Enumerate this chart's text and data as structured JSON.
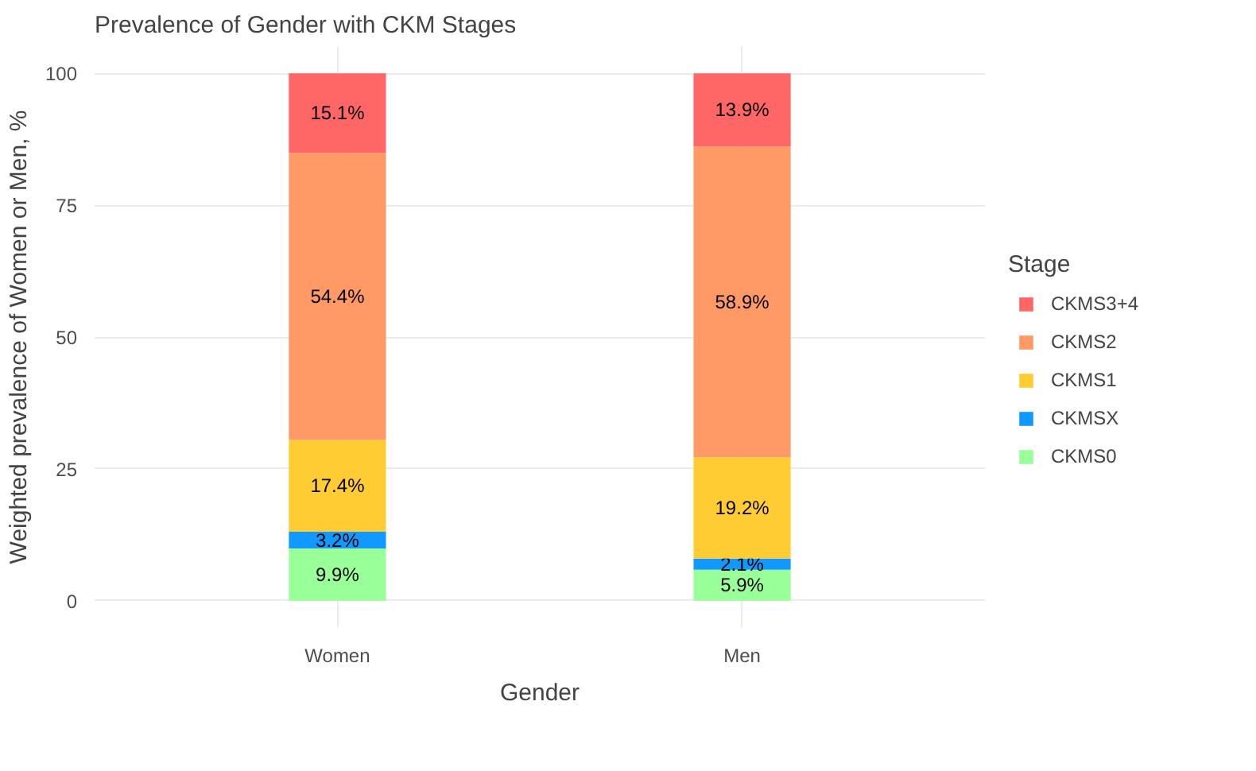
{
  "chart_data": {
    "type": "bar",
    "stacked": true,
    "title": "Prevalence of Gender with CKM Stages",
    "xlabel": "Gender",
    "ylabel": "Weighted prevalence of Women or Men, %",
    "legend_title": "Stage",
    "categories": [
      "Women",
      "Men"
    ],
    "series": [
      {
        "name": "CKMS0",
        "color": "#99ff99",
        "values": [
          9.9,
          5.9
        ],
        "value_labels": [
          "9.9%",
          "5.9%"
        ]
      },
      {
        "name": "CKMSX",
        "color": "#1199ff",
        "values": [
          3.2,
          2.1
        ],
        "value_labels": [
          "3.2%",
          "2.1%"
        ]
      },
      {
        "name": "CKMS1",
        "color": "#ffcc33",
        "values": [
          17.4,
          19.2
        ],
        "value_labels": [
          "17.4%",
          "19.2%"
        ]
      },
      {
        "name": "CKMS2",
        "color": "#ff9966",
        "values": [
          54.4,
          58.9
        ],
        "value_labels": [
          "54.4%",
          "58.9%"
        ]
      },
      {
        "name": "CKMS3+4",
        "color": "#ff6666",
        "values": [
          15.1,
          13.9
        ],
        "value_labels": [
          "15.1%",
          "13.9%"
        ]
      }
    ],
    "ylim": [
      -5,
      105
    ],
    "yticks": [
      0,
      25,
      50,
      75,
      100
    ],
    "grid": true,
    "legend": "right"
  }
}
